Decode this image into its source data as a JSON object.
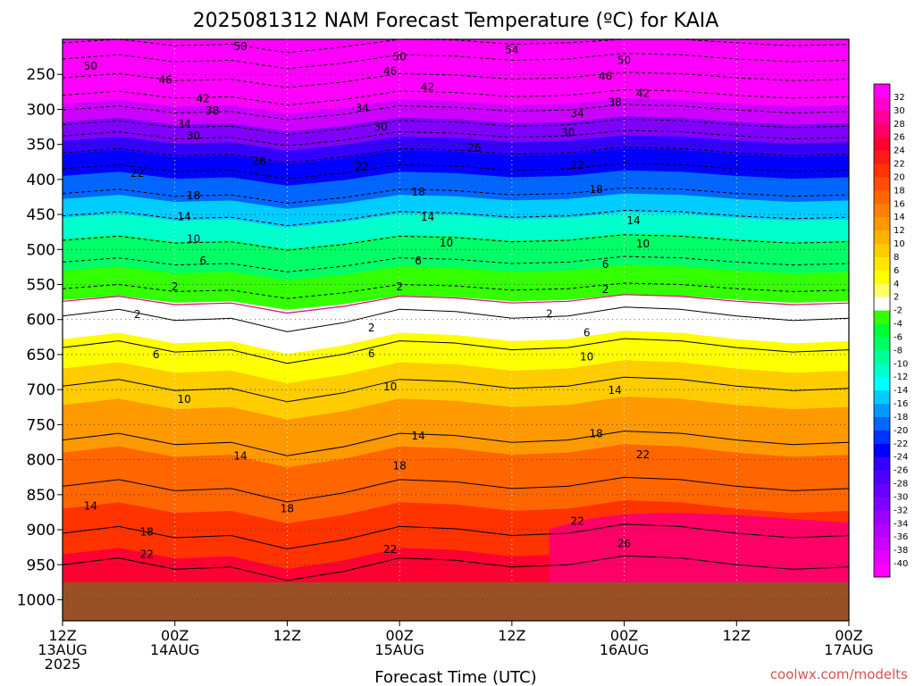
{
  "chart_data": {
    "type": "heatmap",
    "title": "2025081312 NAM Forecast Temperature (ºC) for KAIA",
    "xlabel": "Forecast Time (UTC)",
    "credit": "coolwx.com/modelts",
    "x_ticks": [
      {
        "hours": 0,
        "line1": "12Z",
        "line2": "13AUG",
        "line3": "2025"
      },
      {
        "hours": 12,
        "line1": "00Z",
        "line2": "14AUG",
        "line3": ""
      },
      {
        "hours": 24,
        "line1": "12Z",
        "line2": "",
        "line3": ""
      },
      {
        "hours": 36,
        "line1": "00Z",
        "line2": "15AUG",
        "line3": ""
      },
      {
        "hours": 48,
        "line1": "12Z",
        "line2": "",
        "line3": ""
      },
      {
        "hours": 60,
        "line1": "00Z",
        "line2": "16AUG",
        "line3": ""
      },
      {
        "hours": 72,
        "line1": "12Z",
        "line2": "",
        "line3": ""
      },
      {
        "hours": 84,
        "line1": "00Z",
        "line2": "17AUG",
        "line3": ""
      }
    ],
    "x_range_hours": [
      0,
      84
    ],
    "y_ticks": [
      250,
      300,
      350,
      400,
      450,
      500,
      550,
      600,
      650,
      700,
      750,
      800,
      850,
      900,
      950,
      1000
    ],
    "y_range_hPa": [
      200,
      1030
    ],
    "surface_pressure_hPa": 975,
    "colorbar": {
      "labels": [
        "32",
        "30",
        "28",
        "26",
        "24",
        "22",
        "20",
        "18",
        "16",
        "14",
        "12",
        "10",
        "8",
        "6",
        "4",
        "2",
        "-2",
        "-4",
        "-6",
        "-8",
        "-10",
        "-12",
        "-14",
        "-16",
        "-18",
        "-20",
        "-22",
        "-24",
        "-26",
        "-28",
        "-30",
        "-32",
        "-34",
        "-36",
        "-38",
        "-40"
      ],
      "colors": [
        "#ff00ff",
        "#ff00cc",
        "#ff0099",
        "#ff0066",
        "#ff0033",
        "#ff1a1a",
        "#ff3300",
        "#ff4d00",
        "#ff6600",
        "#ff8000",
        "#ff9900",
        "#ffb300",
        "#ffcc00",
        "#ffe600",
        "#ffff00",
        "#ffff66",
        "#ffffff",
        "#33ff00",
        "#00ff33",
        "#00ff66",
        "#00ff99",
        "#00ffcc",
        "#00ffff",
        "#00ccff",
        "#0099ff",
        "#0066ff",
        "#0033ff",
        "#0000ff",
        "#3300ff",
        "#4d00ff",
        "#6600ff",
        "#8000ff",
        "#9900ff",
        "#b300ff",
        "#cc00ff",
        "#e600ff",
        "#ff00ff"
      ]
    },
    "contour_labels": [
      {
        "v": "50",
        "h": 19,
        "p": 210
      },
      {
        "v": "54",
        "h": 48,
        "p": 215
      },
      {
        "v": "50",
        "h": 36,
        "p": 225
      },
      {
        "v": "50",
        "h": 60,
        "p": 230
      },
      {
        "v": "50",
        "h": 3,
        "p": 238
      },
      {
        "v": "46",
        "h": 11,
        "p": 258
      },
      {
        "v": "46",
        "h": 35,
        "p": 245
      },
      {
        "v": "46",
        "h": 58,
        "p": 253
      },
      {
        "v": "42",
        "h": 15,
        "p": 285
      },
      {
        "v": "42",
        "h": 39,
        "p": 268
      },
      {
        "v": "42",
        "h": 62,
        "p": 277
      },
      {
        "v": "38",
        "h": 16,
        "p": 302
      },
      {
        "v": "38",
        "h": 59,
        "p": 290
      },
      {
        "v": "34",
        "h": 13,
        "p": 321
      },
      {
        "v": "34",
        "h": 32,
        "p": 298
      },
      {
        "v": "34",
        "h": 55,
        "p": 306
      },
      {
        "v": "30",
        "h": 14,
        "p": 338
      },
      {
        "v": "30",
        "h": 34,
        "p": 325
      },
      {
        "v": "30",
        "h": 54,
        "p": 333
      },
      {
        "v": "26",
        "h": 21,
        "p": 374
      },
      {
        "v": "26",
        "h": 44,
        "p": 355
      },
      {
        "v": "22",
        "h": 8,
        "p": 391
      },
      {
        "v": "22",
        "h": 32,
        "p": 382
      },
      {
        "v": "22",
        "h": 55,
        "p": 380
      },
      {
        "v": "18",
        "h": 14,
        "p": 423
      },
      {
        "v": "18",
        "h": 38,
        "p": 418
      },
      {
        "v": "18",
        "h": 57,
        "p": 414
      },
      {
        "v": "14",
        "h": 13,
        "p": 453
      },
      {
        "v": "14",
        "h": 39,
        "p": 454
      },
      {
        "v": "14",
        "h": 61,
        "p": 459
      },
      {
        "v": "10",
        "h": 14,
        "p": 485
      },
      {
        "v": "10",
        "h": 41,
        "p": 491
      },
      {
        "v": "10",
        "h": 62,
        "p": 492
      },
      {
        "v": "6",
        "h": 15,
        "p": 516
      },
      {
        "v": "6",
        "h": 38,
        "p": 516
      },
      {
        "v": "6",
        "h": 58,
        "p": 521
      },
      {
        "v": "2",
        "h": 12,
        "p": 553
      },
      {
        "v": "2",
        "h": 36,
        "p": 553
      },
      {
        "v": "2",
        "h": 58,
        "p": 557
      },
      {
        "v": "2",
        "h": 8,
        "p": 593
      },
      {
        "v": "2",
        "h": 33,
        "p": 612
      },
      {
        "v": "2",
        "h": 52,
        "p": 592
      },
      {
        "v": "6",
        "h": 10,
        "p": 650
      },
      {
        "v": "6",
        "h": 33,
        "p": 649
      },
      {
        "v": "6",
        "h": 56,
        "p": 619
      },
      {
        "v": "10",
        "h": 13,
        "p": 714
      },
      {
        "v": "10",
        "h": 35,
        "p": 696
      },
      {
        "v": "10",
        "h": 56,
        "p": 653
      },
      {
        "v": "14",
        "h": 3,
        "p": 866
      },
      {
        "v": "14",
        "h": 19,
        "p": 795
      },
      {
        "v": "14",
        "h": 38,
        "p": 766
      },
      {
        "v": "14",
        "h": 59,
        "p": 701
      },
      {
        "v": "18",
        "h": 9,
        "p": 903
      },
      {
        "v": "18",
        "h": 24,
        "p": 870
      },
      {
        "v": "18",
        "h": 36,
        "p": 809
      },
      {
        "v": "18",
        "h": 57,
        "p": 763
      },
      {
        "v": "22",
        "h": 9,
        "p": 935
      },
      {
        "v": "22",
        "h": 35,
        "p": 928
      },
      {
        "v": "22",
        "h": 55,
        "p": 888
      },
      {
        "v": "22",
        "h": 62,
        "p": 793
      },
      {
        "v": "26",
        "h": 60,
        "p": 920
      }
    ]
  }
}
